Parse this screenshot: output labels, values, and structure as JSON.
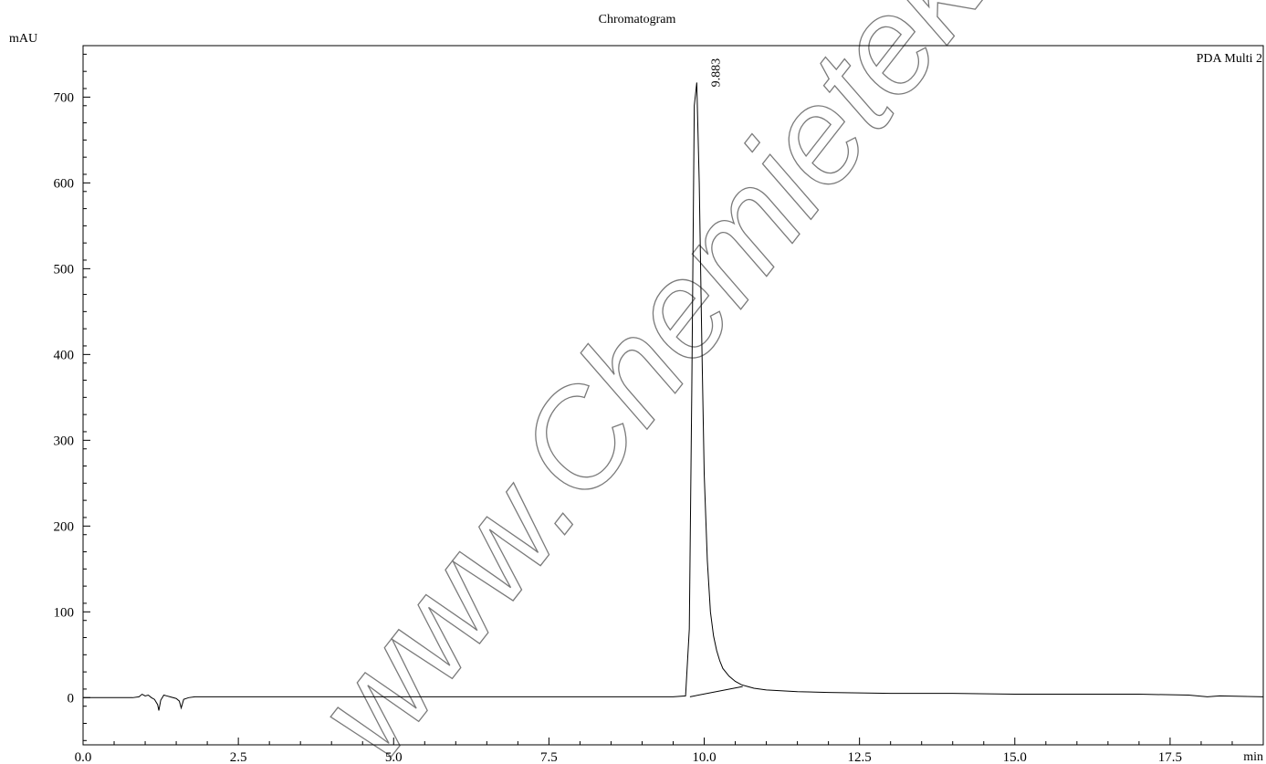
{
  "chart_data": {
    "type": "line",
    "title": "Chromatogram",
    "ylabel": "mAU",
    "xlabel": "min",
    "xlim": [
      0.0,
      19.0
    ],
    "ylim": [
      -55,
      760
    ],
    "x_ticks": [
      "0.0",
      "2.5",
      "5.0",
      "7.5",
      "10.0",
      "12.5",
      "15.0",
      "17.5"
    ],
    "y_ticks": [
      "0",
      "100",
      "200",
      "300",
      "400",
      "500",
      "600",
      "700"
    ],
    "grid": false,
    "series": [
      {
        "name": "PDA Multi 2",
        "x": [
          0.0,
          0.8,
          0.9,
          0.95,
          1.0,
          1.05,
          1.1,
          1.15,
          1.2,
          1.22,
          1.25,
          1.3,
          1.35,
          1.4,
          1.5,
          1.55,
          1.58,
          1.62,
          1.7,
          1.8,
          2.0,
          3.0,
          4.0,
          5.0,
          6.0,
          7.0,
          8.0,
          9.0,
          9.5,
          9.7,
          9.76,
          9.8,
          9.84,
          9.88,
          9.92,
          9.96,
          10.0,
          10.05,
          10.1,
          10.15,
          10.2,
          10.25,
          10.3,
          10.4,
          10.5,
          10.6,
          10.7,
          10.8,
          11.0,
          11.5,
          12.0,
          13.0,
          14.0,
          15.0,
          16.0,
          17.0,
          17.8,
          18.1,
          18.3,
          19.0
        ],
        "y": [
          0,
          0,
          1,
          4,
          2,
          3,
          0,
          -2,
          -8,
          -15,
          -3,
          3,
          2,
          1,
          -1,
          -4,
          -12,
          -2,
          0,
          1,
          1,
          1,
          1,
          1,
          1,
          1,
          1,
          1,
          1,
          2,
          80,
          360,
          690,
          717,
          600,
          420,
          260,
          160,
          100,
          72,
          55,
          43,
          34,
          25,
          19,
          15,
          13,
          11,
          9,
          7,
          6,
          5,
          5,
          4,
          4,
          4,
          3,
          1,
          2,
          1
        ]
      }
    ],
    "baseline": {
      "x": [
        9.77,
        10.62
      ],
      "y": [
        1,
        13
      ]
    },
    "annotations": [
      {
        "x": 9.883,
        "y": 717,
        "text": "9.883"
      }
    ]
  },
  "watermark": {
    "text": "www.Chemietek.com",
    "color": "#7a7a7a"
  }
}
